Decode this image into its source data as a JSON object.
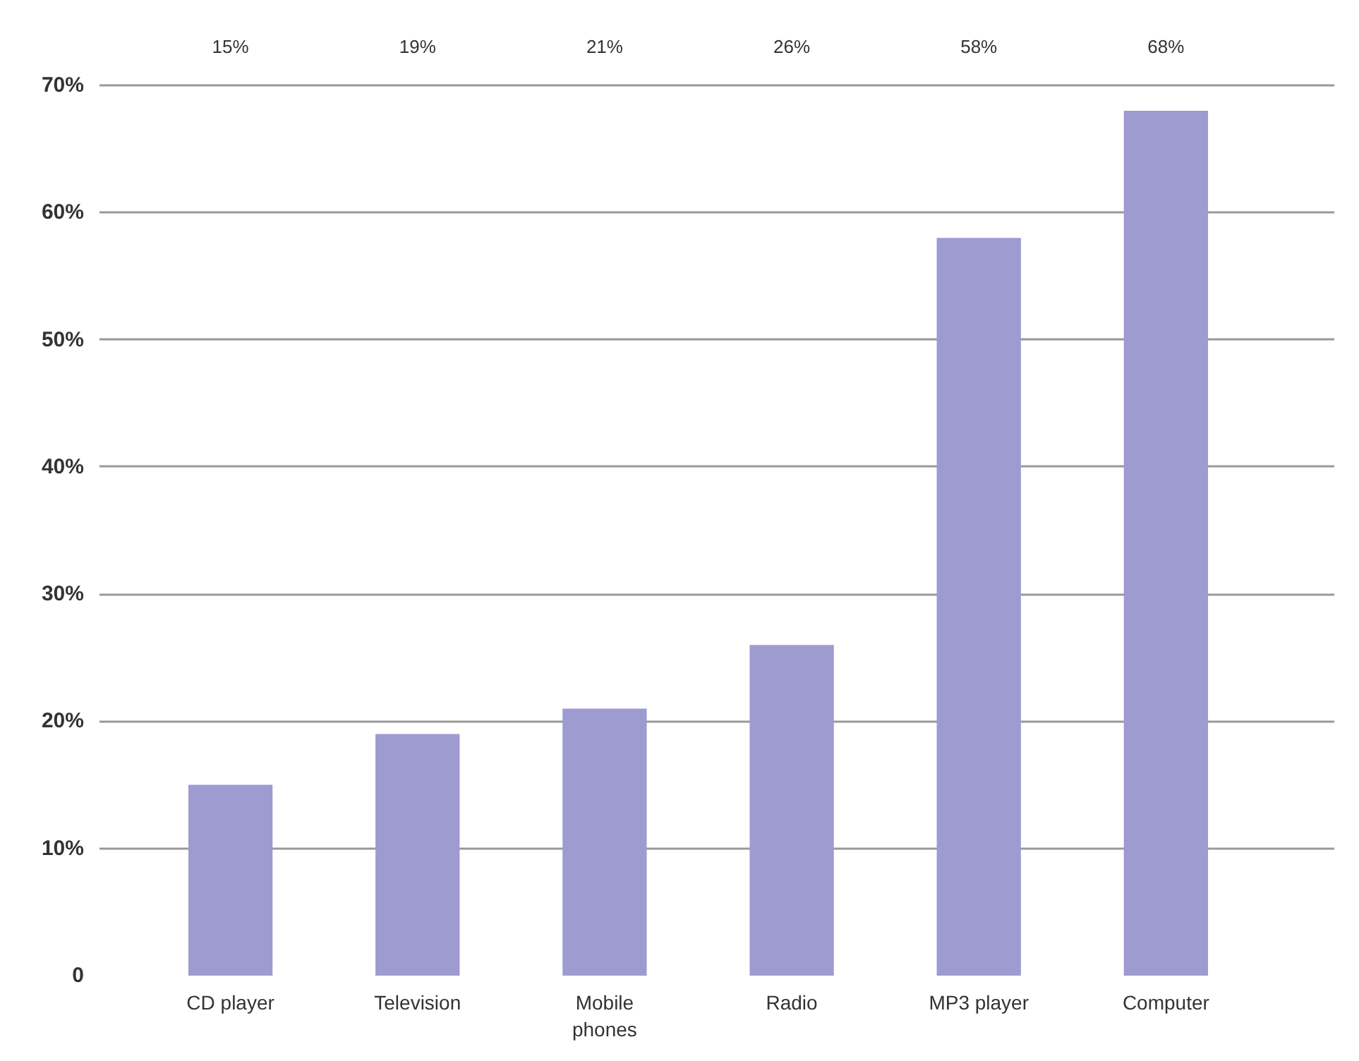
{
  "chart_data": {
    "type": "bar",
    "categories": [
      "CD player",
      "Television",
      "Mobile phones",
      "Radio",
      "MP3 player",
      "Computer"
    ],
    "values": [
      15,
      19,
      21,
      26,
      58,
      68
    ],
    "color": "#9d9bd0",
    "value_labels": [
      "15%",
      "19%",
      "21%",
      "26%",
      "58%",
      "68%"
    ],
    "ylim": [
      0,
      70
    ],
    "yticks": [
      {
        "value": 0,
        "label": "0"
      },
      {
        "value": 10,
        "label": "10%"
      },
      {
        "value": 20,
        "label": "20%"
      },
      {
        "value": 30,
        "label": "30%"
      },
      {
        "value": 40,
        "label": "40%"
      },
      {
        "value": 50,
        "label": "50%"
      },
      {
        "value": 60,
        "label": "60%"
      },
      {
        "value": 70,
        "label": "70%"
      }
    ],
    "grid": "y"
  }
}
